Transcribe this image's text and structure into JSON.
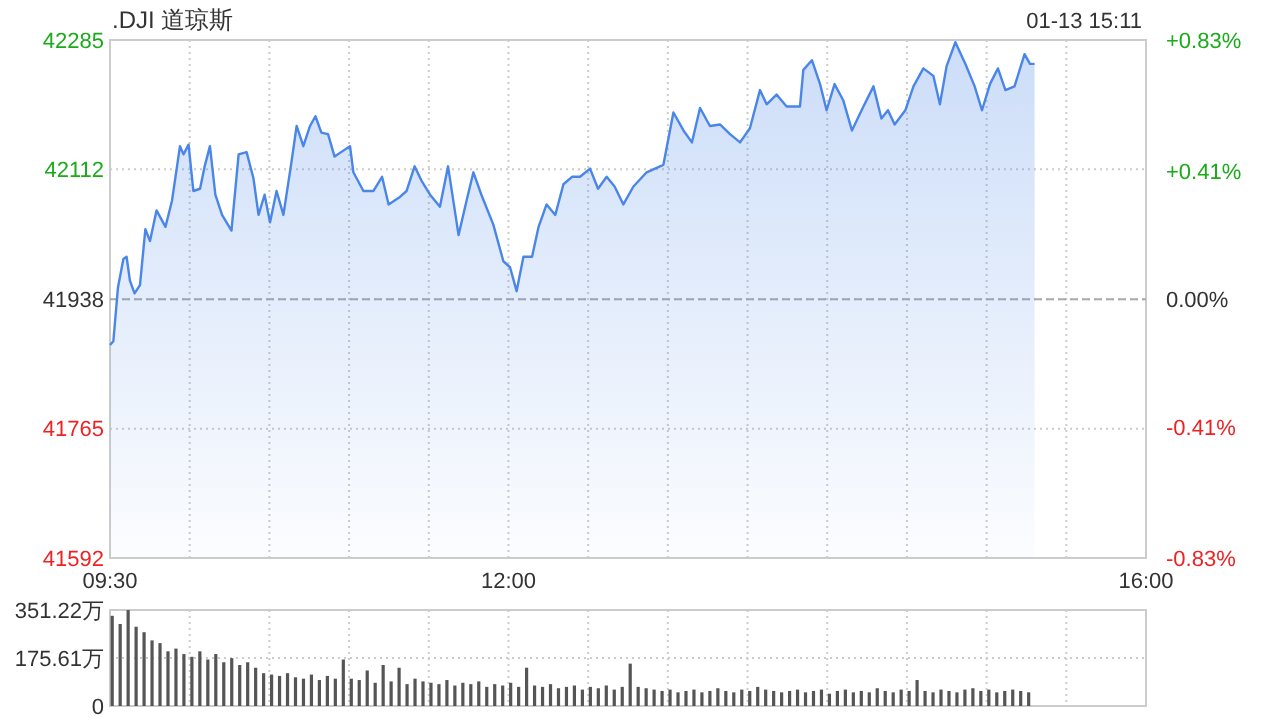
{
  "chart_data": [
    {
      "type": "area",
      "title": ".DJI 道琼斯",
      "annotations": [
        "01-13 15:11"
      ],
      "x": [
        9.5,
        9.521,
        9.55,
        9.584,
        9.604,
        9.625,
        9.654,
        9.688,
        9.722,
        9.751,
        9.792,
        9.848,
        9.889,
        9.939,
        9.961,
        9.993,
        10.023,
        10.065,
        10.094,
        10.127,
        10.161,
        10.203,
        10.262,
        10.307,
        10.357,
        10.4,
        10.432,
        10.47,
        10.504,
        10.545,
        10.588,
        10.638,
        10.671,
        10.713,
        10.755,
        10.789,
        10.826,
        10.868,
        10.909,
        10.964,
        11.006,
        11.027,
        11.09,
        11.153,
        11.207,
        11.248,
        11.319,
        11.361,
        11.411,
        11.454,
        11.508,
        11.57,
        11.621,
        11.687,
        11.737,
        11.78,
        11.83,
        11.905,
        11.968,
        12.01,
        12.051,
        12.094,
        12.148,
        12.189,
        12.239,
        12.294,
        12.345,
        12.399,
        12.449,
        12.512,
        12.562,
        12.616,
        12.666,
        12.721,
        12.784,
        12.867,
        12.972,
        13.035,
        13.098,
        13.151,
        13.202,
        13.264,
        13.327,
        13.39,
        13.453,
        13.515,
        13.578,
        13.62,
        13.682,
        13.745,
        13.829,
        13.85,
        13.904,
        13.955,
        13.996,
        14.046,
        14.101,
        14.155,
        14.227,
        14.29,
        14.34,
        14.381,
        14.423,
        14.49,
        14.541,
        14.603,
        14.666,
        14.707,
        14.749,
        14.804,
        14.867,
        14.925,
        14.971,
        15.021,
        15.071,
        15.118,
        15.175,
        15.238,
        15.272,
        15.301
      ],
      "series": [
        {
          "color": "#4a86e8",
          "values": [
            41877,
            41882,
            41954,
            41992,
            41995,
            41963,
            41946,
            41957,
            42032,
            42016,
            42057,
            42035,
            42070,
            42143,
            42132,
            42145,
            42083,
            42086,
            42116,
            42143,
            42078,
            42051,
            42030,
            42132,
            42135,
            42100,
            42051,
            42078,
            42041,
            42083,
            42051,
            42121,
            42170,
            42143,
            42170,
            42183,
            42161,
            42159,
            42129,
            42137,
            42143,
            42108,
            42083,
            42083,
            42102,
            42065,
            42075,
            42083,
            42116,
            42097,
            42078,
            42062,
            42116,
            42024,
            42070,
            42108,
            42078,
            42038,
            41989,
            41981,
            41949,
            41995,
            41995,
            42035,
            42065,
            42051,
            42092,
            42102,
            42102,
            42113,
            42086,
            42102,
            42089,
            42065,
            42089,
            42108,
            42118,
            42188,
            42164,
            42148,
            42194,
            42170,
            42172,
            42159,
            42148,
            42167,
            42218,
            42199,
            42212,
            42196,
            42196,
            42245,
            42258,
            42226,
            42191,
            42226,
            42204,
            42164,
            42196,
            42223,
            42180,
            42191,
            42172,
            42191,
            42223,
            42247,
            42237,
            42199,
            42250,
            42282,
            42253,
            42223,
            42191,
            42226,
            42247,
            42218,
            42223,
            42266,
            42253,
            42253
          ]
        }
      ],
      "xlim": [
        9.5,
        16
      ],
      "xticks": [
        {
          "value": 9.5,
          "label": "09:30"
        },
        {
          "value": 10,
          "label": null
        },
        {
          "value": 10.5,
          "label": null
        },
        {
          "value": 11,
          "label": null
        },
        {
          "value": 11.5,
          "label": null
        },
        {
          "value": 12,
          "label": "12:00"
        },
        {
          "value": 12.5,
          "label": null
        },
        {
          "value": 13,
          "label": null
        },
        {
          "value": 13.5,
          "label": null
        },
        {
          "value": 14,
          "label": null
        },
        {
          "value": 14.5,
          "label": null
        },
        {
          "value": 15,
          "label": null
        },
        {
          "value": 15.5,
          "label": null
        },
        {
          "value": 16,
          "label": "16:00"
        }
      ],
      "ylim": [
        41592,
        42285
      ],
      "yticks": [
        41592,
        41765,
        41938,
        42112,
        42285
      ],
      "y2lim": [
        -0.83,
        0.83
      ],
      "y2ticks": [
        {
          "value": -0.83,
          "label": "-0.83%"
        },
        {
          "value": -0.41,
          "label": "-0.41%"
        },
        {
          "value": 0,
          "label": "0.00%"
        },
        {
          "value": 0.41,
          "label": "+0.41%"
        },
        {
          "value": 0.83,
          "label": "+0.83%"
        }
      ],
      "ref_lines": [
        {
          "axis": "y",
          "value": 41938,
          "color": "#aaaaaa",
          "line_style": "dashed"
        }
      ],
      "grid": true
    },
    {
      "type": "bar",
      "color": "#555555",
      "x": [
        9.5,
        9.55,
        9.6,
        9.65,
        9.7,
        9.75,
        9.8,
        9.85,
        9.9,
        9.95,
        10,
        10.05,
        10.1,
        10.15,
        10.2,
        10.25,
        10.3,
        10.35,
        10.4,
        10.45,
        10.5,
        10.55,
        10.6,
        10.65,
        10.7,
        10.75,
        10.8,
        10.85,
        10.9,
        10.95,
        11,
        11.05,
        11.1,
        11.15,
        11.2,
        11.25,
        11.3,
        11.35,
        11.4,
        11.45,
        11.5,
        11.55,
        11.6,
        11.65,
        11.7,
        11.75,
        11.8,
        11.85,
        11.9,
        11.95,
        12,
        12.05,
        12.1,
        12.15,
        12.2,
        12.25,
        12.3,
        12.35,
        12.4,
        12.45,
        12.5,
        12.55,
        12.6,
        12.65,
        12.7,
        12.75,
        12.8,
        12.85,
        12.9,
        12.95,
        13,
        13.05,
        13.1,
        13.15,
        13.2,
        13.25,
        13.3,
        13.35,
        13.4,
        13.45,
        13.5,
        13.55,
        13.6,
        13.65,
        13.7,
        13.75,
        13.8,
        13.85,
        13.9,
        13.95,
        14,
        14.05,
        14.1,
        14.15,
        14.2,
        14.25,
        14.3,
        14.35,
        14.4,
        14.45,
        14.5,
        14.55,
        14.6,
        14.65,
        14.7,
        14.75,
        14.8,
        14.85,
        14.9,
        14.95,
        15,
        15.05,
        15.1,
        15.15,
        15.2,
        15.25
      ],
      "values": [
        330,
        300,
        351,
        290,
        270,
        240,
        230,
        200,
        210,
        190,
        180,
        200,
        170,
        190,
        160,
        175,
        150,
        160,
        140,
        120,
        115,
        110,
        120,
        105,
        100,
        115,
        95,
        110,
        100,
        170,
        100,
        95,
        130,
        85,
        150,
        90,
        140,
        80,
        100,
        90,
        85,
        80,
        95,
        75,
        85,
        80,
        90,
        70,
        80,
        75,
        85,
        70,
        140,
        75,
        70,
        80,
        65,
        70,
        75,
        60,
        70,
        65,
        75,
        60,
        70,
        155,
        70,
        65,
        60,
        55,
        60,
        50,
        55,
        60,
        50,
        55,
        65,
        55,
        50,
        60,
        55,
        70,
        60,
        55,
        50,
        55,
        60,
        50,
        55,
        60,
        45,
        55,
        60,
        50,
        55,
        50,
        65,
        55,
        50,
        60,
        55,
        95,
        55,
        50,
        60,
        55,
        50,
        60,
        65,
        55,
        60,
        50,
        55,
        60,
        55,
        50
      ],
      "xlim": [
        9.5,
        16
      ],
      "xticks": [
        {
          "value": 9.5,
          "label": null
        },
        {
          "value": 10,
          "label": null
        },
        {
          "value": 10.5,
          "label": null
        },
        {
          "value": 11,
          "label": null
        },
        {
          "value": 11.5,
          "label": null
        },
        {
          "value": 12,
          "label": null
        },
        {
          "value": 12.5,
          "label": null
        },
        {
          "value": 13,
          "label": null
        },
        {
          "value": 13.5,
          "label": null
        },
        {
          "value": 14,
          "label": null
        },
        {
          "value": 14.5,
          "label": null
        },
        {
          "value": 15,
          "label": null
        },
        {
          "value": 15.5,
          "label": null
        },
        {
          "value": 16,
          "label": null
        }
      ],
      "ylim": [
        0,
        351.22
      ],
      "yticks": [
        0,
        {
          "value": 175.61,
          "label": "175.61万"
        },
        {
          "value": 351.22,
          "label": "351.22万"
        }
      ],
      "tick_labels": "y",
      "grid": true
    }
  ]
}
